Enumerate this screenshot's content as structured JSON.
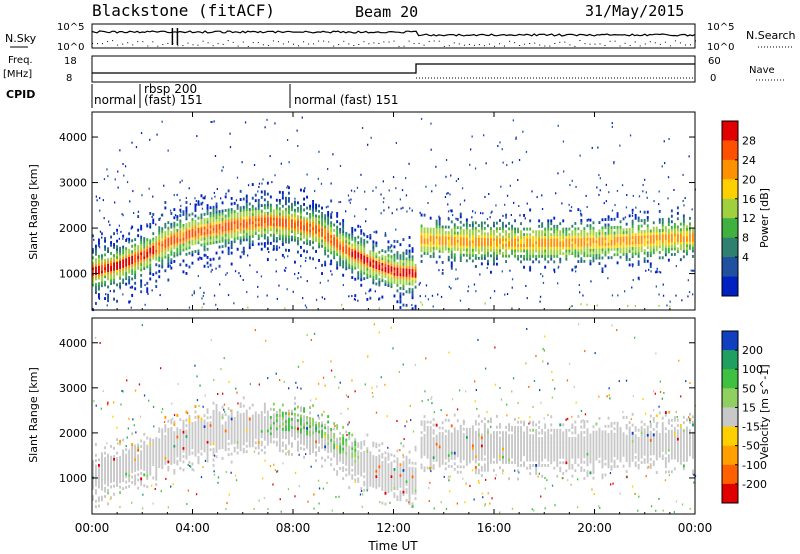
{
  "header": {
    "station": "Blackstone (fitACF)",
    "beam": "Beam 20",
    "date": "31/May/2015"
  },
  "left_labels": {
    "nsky": "N.Sky",
    "freq": "Freq.",
    "freq_unit": "[MHz]",
    "cpid": "CPID"
  },
  "right_labels": {
    "nsearch": "N.Search",
    "nave": "Nave"
  },
  "noise_axis": {
    "top": "10^5",
    "bottom": "10^0"
  },
  "freq_axis": {
    "ticks": [
      "18",
      "8"
    ]
  },
  "nave_axis": {
    "ticks": [
      "60",
      "0"
    ]
  },
  "cpid_labels": {
    "normal1": "normal",
    "rbsp": "rbsp 200",
    "fast": "(fast)  151",
    "normal2": "normal (fast)  151"
  },
  "colors": {
    "power_bg": "#ffffff",
    "velocity_ground": "#c8c8c8"
  },
  "chart_data": [
    {
      "type": "heatmap",
      "title": "Power",
      "xlabel": "",
      "ylabel": "Slant Range [km]",
      "x_ticks": [
        "00:00",
        "04:00",
        "08:00",
        "12:00",
        "16:00",
        "20:00",
        "00:00"
      ],
      "y_ticks": [
        "1000",
        "2000",
        "3000",
        "4000"
      ],
      "ylim": [
        200,
        4550
      ],
      "colorbar": {
        "label": "Power [dB]",
        "ticks": [
          "28",
          "24",
          "20",
          "16",
          "12",
          "8",
          "4"
        ],
        "colors": [
          "#e00000",
          "#ff5000",
          "#ff9000",
          "#ffd000",
          "#a0d040",
          "#40b040",
          "#308070",
          "#2050a0",
          "#0020c0"
        ]
      },
      "ridge_km": [
        [
          0.0,
          1050
        ],
        [
          1.0,
          1180
        ],
        [
          2.0,
          1400
        ],
        [
          3.0,
          1700
        ],
        [
          4.0,
          1900
        ],
        [
          5.0,
          2000
        ],
        [
          6.0,
          2100
        ],
        [
          7.0,
          2150
        ],
        [
          8.0,
          2100
        ],
        [
          9.0,
          1950
        ],
        [
          10.0,
          1550
        ],
        [
          11.0,
          1250
        ],
        [
          12.0,
          1050
        ],
        [
          12.9,
          1000
        ],
        [
          13.0,
          1750
        ],
        [
          15.0,
          1700
        ],
        [
          17.0,
          1680
        ],
        [
          19.0,
          1680
        ],
        [
          21.0,
          1720
        ],
        [
          23.0,
          1780
        ],
        [
          24.0,
          1800
        ]
      ]
    },
    {
      "type": "heatmap",
      "title": "Velocity",
      "xlabel": "Time UT",
      "ylabel": "Slant Range [km]",
      "x_ticks": [
        "00:00",
        "04:00",
        "08:00",
        "12:00",
        "16:00",
        "20:00",
        "00:00"
      ],
      "y_ticks": [
        "1000",
        "2000",
        "3000",
        "4000"
      ],
      "ylim": [
        200,
        4550
      ],
      "colorbar": {
        "label": "Velocity [m s^-1]",
        "ticks": [
          "200",
          "100",
          "50",
          "15",
          "-15",
          "-50",
          "-100",
          "-200"
        ],
        "colors": [
          "#1040c0",
          "#20a060",
          "#40c040",
          "#90d060",
          "#c8c8c8",
          "#ffd000",
          "#ffa000",
          "#ff6000",
          "#e00000"
        ]
      }
    }
  ]
}
